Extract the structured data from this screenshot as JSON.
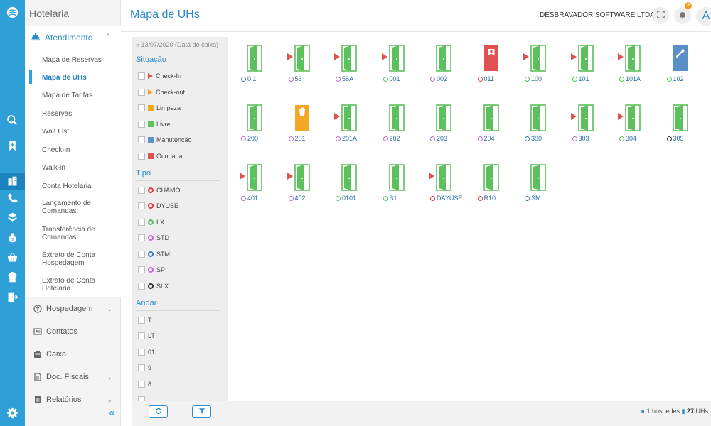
{
  "app": {
    "module_title": "Hotelaria",
    "page_title": "Mapa de UHs"
  },
  "header": {
    "company": "DESBRAVADOR SOFTWARE LTDA",
    "notifications_count": "3",
    "user_initial": "A"
  },
  "nav": {
    "open_section": {
      "label": "Atendimento",
      "icon": "concierge-bell-icon"
    },
    "items": [
      {
        "label": "Mapa de Reservas"
      },
      {
        "label": "Mapa de UHs",
        "active": true
      },
      {
        "label": "Mapa de Tarifas"
      },
      {
        "label": "Reservas"
      },
      {
        "label": "Wait List"
      },
      {
        "label": "Check-in"
      },
      {
        "label": "Walk-in"
      },
      {
        "label": "Conta Hotelaria"
      },
      {
        "label": "Lançamento de Comandas"
      },
      {
        "label": "Transferência de Comandas"
      },
      {
        "label": "Extrato de Conta Hospedagem"
      },
      {
        "label": "Extrato de Conta Hotelaria"
      }
    ],
    "groups": [
      {
        "label": "Hospedagem",
        "icon": "circle-arrow-icon",
        "chevron": true
      },
      {
        "label": "Contatos",
        "icon": "contact-card-icon",
        "chevron": false
      },
      {
        "label": "Caixa",
        "icon": "cash-register-icon",
        "chevron": false
      },
      {
        "label": "Doc. Fiscais",
        "icon": "document-icon",
        "chevron": true
      },
      {
        "label": "Relatórios",
        "icon": "report-icon",
        "chevron": true
      }
    ]
  },
  "filters": {
    "date_crumb": "» 13/07/2020 (Data do caixa)",
    "situacao": {
      "title": "Situação",
      "options": [
        {
          "label": "Check-In",
          "marker": "triangle",
          "color": "#e05252"
        },
        {
          "label": "Check-out",
          "marker": "triangle",
          "color": "#f39a3a"
        },
        {
          "label": "Limpeza",
          "marker": "square",
          "color": "#f5a623"
        },
        {
          "label": "Livre",
          "marker": "square",
          "color": "#5cc05c"
        },
        {
          "label": "Manutenção",
          "marker": "square",
          "color": "#5b8fc8"
        },
        {
          "label": "Ocupada",
          "marker": "square",
          "color": "#e05252"
        }
      ]
    },
    "tipo": {
      "title": "Tipo",
      "options": [
        {
          "label": "CHAMO",
          "color": "#e03a3a"
        },
        {
          "label": "DYUSE",
          "color": "#e03a3a"
        },
        {
          "label": "LX",
          "color": "#5cc05c"
        },
        {
          "label": "STD",
          "color": "#c766d6"
        },
        {
          "label": "STM",
          "color": "#3a7cc8"
        },
        {
          "label": "SP",
          "color": "#c766d6"
        },
        {
          "label": "SLX",
          "color": "#333333"
        }
      ]
    },
    "andar": {
      "title": "Andar",
      "options": [
        "T",
        "LT",
        "01",
        "9",
        "8"
      ]
    }
  },
  "rooms": [
    {
      "number": "0.1",
      "type_color": "#3a7cc8",
      "status": "livre",
      "arrow": false
    },
    {
      "number": "56",
      "type_color": "#c766d6",
      "status": "livre",
      "arrow": true
    },
    {
      "number": "56A",
      "type_color": "#c766d6",
      "status": "livre",
      "arrow": true
    },
    {
      "number": "001",
      "type_color": "#5cc05c",
      "status": "livre",
      "arrow": true
    },
    {
      "number": "002",
      "type_color": "#c766d6",
      "status": "livre",
      "arrow": false
    },
    {
      "number": "011",
      "type_color": "#e03a3a",
      "status": "ocupada",
      "arrow": false
    },
    {
      "number": "100",
      "type_color": "#5cc05c",
      "status": "livre",
      "arrow": true
    },
    {
      "number": "101",
      "type_color": "#5cc05c",
      "status": "livre",
      "arrow": true
    },
    {
      "number": "101A",
      "type_color": "#5cc05c",
      "status": "livre",
      "arrow": true
    },
    {
      "number": "102",
      "type_color": "#5cc05c",
      "status": "manutencao",
      "arrow": false
    },
    {
      "number": "200",
      "type_color": "#c766d6",
      "status": "livre",
      "arrow": false
    },
    {
      "number": "201",
      "type_color": "#c766d6",
      "status": "limpeza",
      "arrow": false
    },
    {
      "number": "201A",
      "type_color": "#c766d6",
      "status": "livre",
      "arrow": true
    },
    {
      "number": "202",
      "type_color": "#c766d6",
      "status": "livre",
      "arrow": false
    },
    {
      "number": "203",
      "type_color": "#c766d6",
      "status": "livre",
      "arrow": false
    },
    {
      "number": "204",
      "type_color": "#c766d6",
      "status": "livre",
      "arrow": false
    },
    {
      "number": "300",
      "type_color": "#3a7cc8",
      "status": "livre",
      "arrow": false
    },
    {
      "number": "303",
      "type_color": "#c766d6",
      "status": "livre",
      "arrow": true
    },
    {
      "number": "304",
      "type_color": "#5cc05c",
      "status": "livre",
      "arrow": true
    },
    {
      "number": "305",
      "type_color": "#333333",
      "status": "livre",
      "arrow": false
    },
    {
      "number": "401",
      "type_color": "#c766d6",
      "status": "livre",
      "arrow": true
    },
    {
      "number": "402",
      "type_color": "#c766d6",
      "status": "livre",
      "arrow": true
    },
    {
      "number": "0101",
      "type_color": "#5cc05c",
      "status": "livre",
      "arrow": false
    },
    {
      "number": "B1",
      "type_color": "#5cc05c",
      "status": "livre",
      "arrow": false
    },
    {
      "number": "DAYUSE",
      "type_color": "#e03a3a",
      "status": "livre",
      "arrow": true
    },
    {
      "number": "R10",
      "type_color": "#e03a3a",
      "status": "livre",
      "arrow": false
    },
    {
      "number": "SM",
      "type_color": "#3a7cc8",
      "status": "livre",
      "arrow": false
    }
  ],
  "status_colors": {
    "livre": "#5cc05c",
    "ocupada": "#e05252",
    "limpeza": "#f5a623",
    "manutencao": "#5b8fc8"
  },
  "footer": {
    "refresh_icon": "refresh-icon",
    "filter_icon": "filter-icon",
    "guests": "1 hospedes",
    "uhs_count": "27",
    "uhs_label": "UHs"
  }
}
